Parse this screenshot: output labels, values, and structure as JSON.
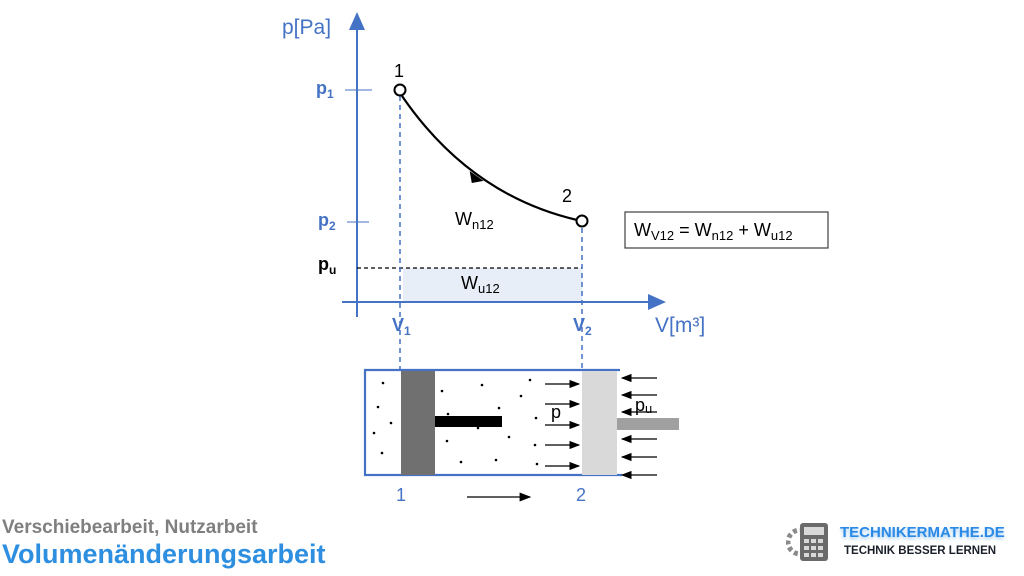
{
  "diagram": {
    "y_axis_label": "p[Pa]",
    "x_axis_label": "V[m³]",
    "p_ticks": [
      {
        "base": "p",
        "sub": "1"
      },
      {
        "base": "p",
        "sub": "2"
      },
      {
        "base": "p",
        "sub": "u"
      }
    ],
    "v_ticks": [
      {
        "base": "V",
        "sub": "1"
      },
      {
        "base": "V",
        "sub": "2"
      }
    ],
    "point_labels": [
      "1",
      "2"
    ],
    "area_labels": {
      "wn": {
        "base": "W",
        "sub": "n12"
      },
      "wu": {
        "base": "W",
        "sub": "u12"
      }
    },
    "equation": {
      "lhs": "W",
      "lhs_sub": "V12",
      "eq": " = ",
      "t1": "W",
      "t1_sub": "n12",
      "plus": " + ",
      "t2": "W",
      "t2_sub": "u12"
    },
    "cylinder": {
      "p_inside": "p",
      "p_outside": "p",
      "p_outside_sub": "u",
      "pos1": "1",
      "pos2": "2"
    },
    "colors": {
      "axis": "#4472c4",
      "label": "#4472c4",
      "fill": "#e8eef8",
      "piston_dark": "#707070",
      "piston_light": "#d9d9d9",
      "rod_right": "#a0a0a0"
    }
  },
  "footer": {
    "subtitle": "Verschiebearbeit, Nutzarbeit",
    "title": "Volumenänderungsarbeit"
  },
  "logo": {
    "line1": "TECHNIKERMATHE.DE",
    "line2": "TECHNIK BESSER LERNEN",
    "icon": "calculator-gear-icon"
  }
}
